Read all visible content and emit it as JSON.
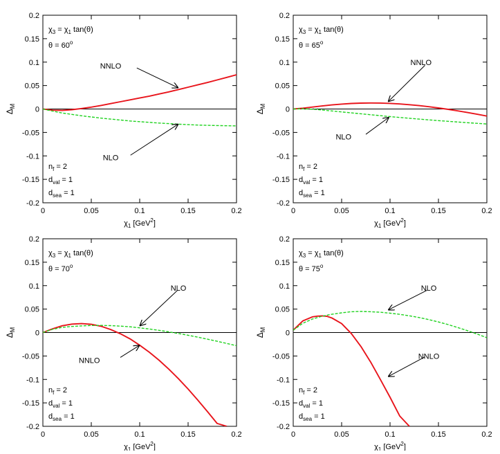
{
  "chart_data": [
    {
      "type": "line",
      "x_range": [
        0,
        0.2
      ],
      "ylim": [
        -0.2,
        0.2
      ],
      "xticks": [
        "0",
        "0.05",
        "0.1",
        "0.15",
        "0.2"
      ],
      "yticks": [
        "0.2",
        "0.15",
        "0.1",
        "0.05",
        "0",
        "-0.05",
        "-0.1",
        "-0.15",
        "-0.2"
      ],
      "xlabel": {
        "base": "χ",
        "sub": "1",
        "unit_pre": " [GeV",
        "unit_sup": "2",
        "unit_post": "]"
      },
      "ylabel": {
        "base": "Δ",
        "sub": "M"
      },
      "annotations": {
        "relation": {
          "l1": "χ",
          "s1": "3",
          "mid": " = χ",
          "s2": "1",
          "tail": " tan(θ)"
        },
        "angle": {
          "pre": "θ = 60",
          "sup": "o"
        },
        "params": [
          {
            "base": "n",
            "sub": "f",
            "tail": " = 2"
          },
          {
            "base": "d",
            "sub": "val",
            "tail": " = 1"
          },
          {
            "base": "d",
            "sub": "sea",
            "tail": " = 1"
          }
        ]
      },
      "series": [
        {
          "name": "NNLO",
          "color": "#e8141b",
          "dash": "solid",
          "x": [
            0,
            0.01,
            0.02,
            0.03,
            0.04,
            0.05,
            0.06,
            0.07,
            0.08,
            0.09,
            0.1,
            0.11,
            0.12,
            0.13,
            0.14,
            0.15,
            0.16,
            0.17,
            0.18,
            0.19,
            0.2
          ],
          "y": [
            0,
            -0.0025,
            -0.003,
            -0.0015,
            0.001,
            0.004,
            0.0075,
            0.0115,
            0.0155,
            0.0195,
            0.0235,
            0.0275,
            0.032,
            0.0365,
            0.0415,
            0.0465,
            0.0515,
            0.0565,
            0.062,
            0.0675,
            0.073
          ],
          "label_text": "NNLO",
          "label_at": [
            0.07,
            0.092
          ],
          "arrow_from": [
            0.097,
            0.0875
          ],
          "arrow_to": [
            0.14,
            0.045
          ]
        },
        {
          "name": "NLO",
          "color": "#1fd21f",
          "dash": "dashed",
          "x": [
            0,
            0.01,
            0.02,
            0.03,
            0.04,
            0.05,
            0.06,
            0.07,
            0.08,
            0.09,
            0.1,
            0.11,
            0.12,
            0.13,
            0.14,
            0.15,
            0.16,
            0.17,
            0.18,
            0.19,
            0.2
          ],
          "y": [
            0,
            -0.0045,
            -0.0085,
            -0.0115,
            -0.0145,
            -0.017,
            -0.0195,
            -0.0215,
            -0.0235,
            -0.0255,
            -0.027,
            -0.0285,
            -0.03,
            -0.0312,
            -0.0323,
            -0.0333,
            -0.0342,
            -0.0348,
            -0.0353,
            -0.0357,
            -0.036
          ],
          "label_text": "NLO",
          "label_at": [
            0.07,
            -0.103
          ],
          "arrow_from": [
            0.0905,
            -0.0985
          ],
          "arrow_to": [
            0.14,
            -0.032
          ]
        }
      ]
    },
    {
      "type": "line",
      "x_range": [
        0,
        0.2
      ],
      "ylim": [
        -0.2,
        0.2
      ],
      "xticks": [
        "0",
        "0.05",
        "0.1",
        "0.15",
        "0.2"
      ],
      "yticks": [
        "0.2",
        "0.15",
        "0.1",
        "0.05",
        "0",
        "-0.05",
        "-0.1",
        "-0.15",
        "-0.2"
      ],
      "xlabel": {
        "base": "χ",
        "sub": "1",
        "unit_pre": " [GeV",
        "unit_sup": "2",
        "unit_post": "]"
      },
      "ylabel": {
        "base": "Δ",
        "sub": "M"
      },
      "annotations": {
        "relation": {
          "l1": "χ",
          "s1": "3",
          "mid": " = χ",
          "s2": "1",
          "tail": " tan(θ)"
        },
        "angle": {
          "pre": "θ = 65",
          "sup": "o"
        },
        "params": [
          {
            "base": "n",
            "sub": "f",
            "tail": " = 2"
          },
          {
            "base": "d",
            "sub": "val",
            "tail": " = 1"
          },
          {
            "base": "d",
            "sub": "sea",
            "tail": " = 1"
          }
        ]
      },
      "series": [
        {
          "name": "NNLO",
          "color": "#e8141b",
          "dash": "solid",
          "x": [
            0,
            0.01,
            0.02,
            0.03,
            0.04,
            0.05,
            0.06,
            0.07,
            0.08,
            0.09,
            0.1,
            0.11,
            0.12,
            0.13,
            0.14,
            0.15,
            0.16,
            0.17,
            0.18,
            0.19,
            0.2
          ],
          "y": [
            0,
            0.0018,
            0.0042,
            0.0065,
            0.0087,
            0.0105,
            0.0118,
            0.0126,
            0.0129,
            0.0127,
            0.012,
            0.0108,
            0.0092,
            0.0072,
            0.0049,
            0.0022,
            -0.0008,
            -0.004,
            -0.0075,
            -0.0112,
            -0.015
          ],
          "label_text": "NNLO",
          "label_at": [
            0.132,
            0.1
          ],
          "arrow_from": [
            0.136,
            0.093
          ],
          "arrow_to": [
            0.098,
            0.0155
          ]
        },
        {
          "name": "NLO",
          "color": "#1fd21f",
          "dash": "dashed",
          "x": [
            0,
            0.01,
            0.02,
            0.03,
            0.04,
            0.05,
            0.06,
            0.07,
            0.08,
            0.09,
            0.1,
            0.11,
            0.12,
            0.13,
            0.14,
            0.15,
            0.16,
            0.17,
            0.18,
            0.19,
            0.2
          ],
          "y": [
            0,
            0.0005,
            -0.0005,
            -0.0022,
            -0.0042,
            -0.0062,
            -0.0082,
            -0.0102,
            -0.0122,
            -0.0142,
            -0.0162,
            -0.018,
            -0.0198,
            -0.0215,
            -0.0232,
            -0.0248,
            -0.0263,
            -0.0278,
            -0.0292,
            -0.0306,
            -0.032
          ],
          "label_text": "NLO",
          "label_at": [
            0.052,
            -0.059
          ],
          "arrow_from": [
            0.075,
            -0.054
          ],
          "arrow_to": [
            0.099,
            -0.0175
          ]
        }
      ]
    },
    {
      "type": "line",
      "x_range": [
        0,
        0.2
      ],
      "ylim": [
        -0.2,
        0.2
      ],
      "xticks": [
        "0",
        "0.05",
        "0.1",
        "0.15",
        "0.2"
      ],
      "yticks": [
        "0.2",
        "0.15",
        "0.1",
        "0.05",
        "0",
        "-0.05",
        "-0.1",
        "-0.15",
        "-0.2"
      ],
      "xlabel": {
        "base": "χ",
        "sub": "1",
        "unit_pre": " [GeV",
        "unit_sup": "2",
        "unit_post": "]"
      },
      "ylabel": {
        "base": "Δ",
        "sub": "M"
      },
      "annotations": {
        "relation": {
          "l1": "χ",
          "s1": "3",
          "mid": " = χ",
          "s2": "1",
          "tail": " tan(θ)"
        },
        "angle": {
          "pre": "θ = 70",
          "sup": "o"
        },
        "params": [
          {
            "base": "n",
            "sub": "f",
            "tail": " = 2"
          },
          {
            "base": "d",
            "sub": "val",
            "tail": " = 1"
          },
          {
            "base": "d",
            "sub": "sea",
            "tail": " = 1"
          }
        ]
      },
      "series": [
        {
          "name": "NNLO",
          "color": "#e8141b",
          "dash": "solid",
          "x": [
            0,
            0.01,
            0.02,
            0.03,
            0.04,
            0.05,
            0.06,
            0.07,
            0.08,
            0.09,
            0.1,
            0.11,
            0.12,
            0.13,
            0.14,
            0.15,
            0.16,
            0.17,
            0.18,
            0.19
          ],
          "y": [
            0,
            0.008,
            0.0145,
            0.018,
            0.019,
            0.0175,
            0.0135,
            0.0065,
            -0.0025,
            -0.0135,
            -0.027,
            -0.042,
            -0.059,
            -0.078,
            -0.0985,
            -0.1205,
            -0.144,
            -0.1685,
            -0.194,
            -0.2
          ],
          "label_text": "NNLO",
          "label_at": [
            0.048,
            -0.059
          ],
          "arrow_from": [
            0.08,
            -0.053
          ],
          "arrow_to": [
            0.1,
            -0.027
          ]
        },
        {
          "name": "NLO",
          "color": "#1fd21f",
          "dash": "dashed",
          "x": [
            0,
            0.01,
            0.02,
            0.03,
            0.04,
            0.05,
            0.06,
            0.07,
            0.08,
            0.09,
            0.1,
            0.11,
            0.12,
            0.13,
            0.14,
            0.15,
            0.16,
            0.17,
            0.18,
            0.19,
            0.2
          ],
          "y": [
            0,
            0.007,
            0.011,
            0.013,
            0.0142,
            0.015,
            0.0152,
            0.0148,
            0.0138,
            0.0122,
            0.01,
            0.0075,
            0.0047,
            0.0015,
            -0.002,
            -0.0058,
            -0.0098,
            -0.0141,
            -0.0186,
            -0.0233,
            -0.028
          ],
          "label_text": "NLO",
          "label_at": [
            0.14,
            0.095
          ],
          "arrow_from": [
            0.139,
            0.09
          ],
          "arrow_to": [
            0.1,
            0.014
          ]
        }
      ]
    },
    {
      "type": "line",
      "x_range": [
        0,
        0.2
      ],
      "ylim": [
        -0.2,
        0.2
      ],
      "xticks": [
        "0",
        "0.05",
        "0.1",
        "0.15",
        "0.2"
      ],
      "yticks": [
        "0.2",
        "0.15",
        "0.1",
        "0.05",
        "0",
        "-0.05",
        "-0.1",
        "-0.15",
        "-0.2"
      ],
      "xlabel": {
        "base": "χ",
        "sub": "1",
        "unit_pre": " [GeV",
        "unit_sup": "2",
        "unit_post": "]"
      },
      "ylabel": {
        "base": "Δ",
        "sub": "M"
      },
      "annotations": {
        "relation": {
          "l1": "χ",
          "s1": "3",
          "mid": " = χ",
          "s2": "1",
          "tail": " tan(θ)"
        },
        "angle": {
          "pre": "θ = 75",
          "sup": "o"
        },
        "params": [
          {
            "base": "n",
            "sub": "f",
            "tail": " = 2"
          },
          {
            "base": "d",
            "sub": "val",
            "tail": " = 1"
          },
          {
            "base": "d",
            "sub": "sea",
            "tail": " = 1"
          }
        ]
      },
      "series": [
        {
          "name": "NNLO",
          "color": "#e8141b",
          "dash": "solid",
          "x": [
            0,
            0.01,
            0.02,
            0.025,
            0.03,
            0.035,
            0.04,
            0.05,
            0.06,
            0.07,
            0.08,
            0.09,
            0.1,
            0.11,
            0.12
          ],
          "y": [
            0.005,
            0.025,
            0.0335,
            0.035,
            0.0355,
            0.0345,
            0.031,
            0.019,
            -0.002,
            -0.03,
            -0.063,
            -0.1,
            -0.138,
            -0.178,
            -0.2
          ],
          "label_text": "NNLO",
          "label_at": [
            0.14,
            -0.05
          ],
          "arrow_from": [
            0.136,
            -0.052
          ],
          "arrow_to": [
            0.098,
            -0.094
          ]
        },
        {
          "name": "NLO",
          "color": "#1fd21f",
          "dash": "dashed",
          "x": [
            0,
            0.01,
            0.02,
            0.03,
            0.04,
            0.05,
            0.06,
            0.07,
            0.08,
            0.09,
            0.1,
            0.11,
            0.12,
            0.13,
            0.14,
            0.15,
            0.16,
            0.17,
            0.18,
            0.19,
            0.2
          ],
          "y": [
            0.005,
            0.02,
            0.029,
            0.035,
            0.039,
            0.042,
            0.0445,
            0.045,
            0.0445,
            0.0432,
            0.0413,
            0.0388,
            0.0357,
            0.032,
            0.0276,
            0.0226,
            0.017,
            0.0107,
            0.004,
            -0.0032,
            -0.011
          ],
          "label_text": "NLO",
          "label_at": [
            0.14,
            0.095
          ],
          "arrow_from": [
            0.138,
            0.09
          ],
          "arrow_to": [
            0.098,
            0.048
          ]
        }
      ]
    }
  ]
}
